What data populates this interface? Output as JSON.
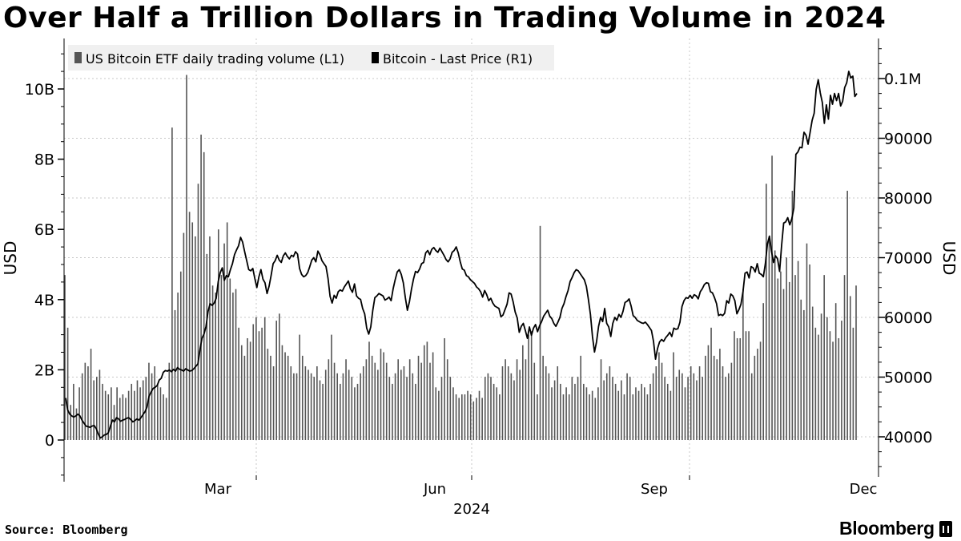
{
  "title": "Over Half a Trillion Dollars in Trading Volume in 2024",
  "source": "Source: Bloomberg",
  "logo": "Bloomberg",
  "colors": {
    "volume_bar": "#555555",
    "price_line": "#000000",
    "grid": "#c8c8c8",
    "legend_bg": "#f0f0f0"
  },
  "chart_data": {
    "type": "bar",
    "legend": [
      "US Bitcoin ETF daily trading volume (L1)",
      "Bitcoin - Last Price (R1)"
    ],
    "legend_placement": "top-left",
    "grid": true,
    "x_tick_labels": [
      "Mar",
      "Jun",
      "Sep",
      "Dec"
    ],
    "x_year_label": "2024",
    "x_range": [
      "2024-01-08",
      "2024-12-13"
    ],
    "left_axis": {
      "label": "USD",
      "tick_labels": [
        "0",
        "2B",
        "4B",
        "6B",
        "8B",
        "10B"
      ],
      "range": [
        -1000000000,
        11200000000
      ]
    },
    "right_axis": {
      "label": "USD",
      "tick_labels": [
        "40000",
        "50000",
        "60000",
        "70000",
        "80000",
        "90000",
        "0.1M"
      ],
      "range": [
        34200,
        106500
      ]
    },
    "series": [
      {
        "name": "US Bitcoin ETF daily trading volume (L1)",
        "type": "bar",
        "axis": "left",
        "values": [
          4.7,
          3.2,
          1.0,
          1.6,
          0.9,
          1.5,
          1.9,
          2.2,
          2.1,
          2.6,
          1.7,
          1.8,
          2.0,
          1.6,
          1.4,
          1.3,
          1.5,
          1.0,
          1.5,
          1.2,
          1.3,
          1.2,
          1.4,
          1.6,
          1.4,
          1.7,
          1.5,
          1.7,
          1.8,
          2.2,
          1.9,
          2.1,
          1.6,
          1.5,
          1.3,
          1.2,
          2.2,
          8.9,
          3.7,
          4.2,
          4.8,
          5.9,
          10.4,
          6.5,
          6.2,
          5.8,
          7.3,
          8.7,
          8.2,
          5.3,
          5.8,
          4.4,
          4.2,
          6.0,
          4.7,
          5.6,
          6.2,
          4.6,
          4.2,
          4.3,
          3.2,
          2.7,
          2.4,
          2.9,
          2.8,
          3.3,
          3.5,
          3.1,
          3.2,
          3.5,
          2.6,
          2.4,
          2.1,
          3.4,
          3.6,
          2.7,
          2.5,
          2.4,
          2.1,
          1.9,
          1.9,
          3.0,
          2.4,
          2.1,
          2.0,
          1.9,
          1.8,
          2.1,
          1.7,
          1.6,
          2.0,
          2.3,
          3.0,
          2.2,
          1.9,
          1.6,
          1.9,
          2.3,
          2.0,
          1.8,
          1.5,
          1.6,
          1.9,
          2.1,
          2.3,
          2.8,
          2.4,
          2.2,
          2.0,
          2.6,
          2.5,
          2.2,
          1.8,
          1.6,
          1.9,
          2.3,
          2.0,
          2.1,
          1.8,
          2.3,
          1.9,
          1.6,
          2.4,
          2.2,
          2.7,
          2.8,
          2.2,
          2.5,
          1.5,
          1.4,
          1.8,
          2.9,
          2.3,
          1.8,
          1.5,
          1.3,
          1.2,
          1.3,
          1.3,
          1.4,
          1.3,
          1.1,
          1.2,
          1.4,
          1.2,
          1.8,
          1.9,
          1.8,
          1.6,
          1.5,
          1.3,
          2.1,
          2.3,
          2.1,
          1.9,
          1.7,
          2.3,
          2.0,
          2.7,
          2.3,
          3.0,
          3.1,
          2.2,
          1.3,
          6.1,
          2.4,
          2.1,
          1.9,
          1.5,
          1.7,
          2.1,
          1.6,
          1.3,
          1.5,
          1.3,
          1.8,
          1.6,
          1.8,
          2.4,
          1.6,
          1.5,
          1.3,
          1.4,
          1.2,
          1.5,
          2.3,
          1.7,
          1.9,
          2.1,
          1.8,
          1.6,
          1.4,
          1.7,
          1.3,
          1.9,
          1.8,
          1.3,
          1.5,
          1.4,
          1.6,
          1.5,
          1.3,
          1.6,
          1.9,
          2.1,
          2.5,
          2.2,
          1.8,
          1.6,
          1.4,
          2.5,
          1.8,
          2.0,
          1.9,
          1.5,
          1.8,
          2.1,
          1.9,
          1.7,
          2.1,
          1.8,
          2.4,
          2.7,
          3.2,
          2.4,
          2.3,
          2.6,
          2.1,
          1.8,
          1.9,
          2.2,
          3.1,
          2.9,
          2.9,
          4.3,
          3.1,
          3.1,
          1.9,
          2.4,
          2.6,
          2.8,
          3.9,
          7.3,
          5.8,
          8.1,
          5.4,
          4.6,
          4.8,
          4.3,
          5.2,
          4.5,
          7.1,
          4.7,
          5.1,
          4.0,
          3.7,
          5.6,
          5.0,
          3.8,
          3.2,
          3.0,
          3.6,
          4.7,
          3.5,
          3.1,
          2.8,
          3.9,
          2.9,
          3.4,
          4.7,
          7.1,
          4.1,
          3.2,
          4.4
        ],
        "unit": "B USD"
      },
      {
        "name": "Bitcoin - Last Price (R1)",
        "type": "line",
        "axis": "right",
        "values": [
          46500,
          44500,
          43800,
          43500,
          43300,
          43500,
          43800,
          43500,
          42800,
          42300,
          41800,
          41700,
          41600,
          41800,
          41900,
          41400,
          40500,
          39800,
          40000,
          40300,
          40400,
          40700,
          41800,
          42800,
          42500,
          43200,
          43000,
          42600,
          42800,
          42900,
          43100,
          43200,
          42900,
          42500,
          42700,
          43000,
          42800,
          43200,
          43700,
          44200,
          45000,
          46800,
          47500,
          48100,
          48300,
          48600,
          49500,
          49800,
          50800,
          51100,
          51000,
          51200,
          50900,
          51300,
          51000,
          51600,
          51300,
          51200,
          51000,
          51400,
          51200,
          51000,
          51100,
          51400,
          51800,
          52200,
          54500,
          56500,
          57200,
          58500,
          61000,
          62300,
          62000,
          62400,
          63200,
          66000,
          67500,
          68300,
          66200,
          67000,
          66800,
          68000,
          69000,
          70500,
          71300,
          72000,
          73400,
          72600,
          71000,
          69500,
          68000,
          67800,
          68200,
          66500,
          65000,
          66800,
          68000,
          66400,
          65800,
          64000,
          65200,
          67000,
          69000,
          69500,
          70400,
          69600,
          69200,
          70300,
          70800,
          70200,
          69800,
          70400,
          70200,
          71000,
          70600,
          68200,
          67200,
          66800,
          67000,
          67500,
          68500,
          69600,
          70000,
          69300,
          71100,
          70500,
          69500,
          69000,
          68500,
          66500,
          63500,
          62400,
          63700,
          63200,
          64300,
          64600,
          64400,
          65100,
          65600,
          66100,
          64800,
          64200,
          65600,
          63600,
          63200,
          63000,
          61500,
          60600,
          58200,
          57200,
          58400,
          61200,
          63300,
          63600,
          64000,
          63800,
          63600,
          62900,
          63100,
          63400,
          62800,
          64800,
          66300,
          67600,
          68000,
          67200,
          65800,
          63300,
          61200,
          62600,
          64700,
          66400,
          67700,
          67500,
          68100,
          69000,
          69200,
          70800,
          71200,
          70500,
          71400,
          71700,
          71200,
          70900,
          71600,
          71000,
          70400,
          69700,
          69300,
          69800,
          70900,
          71200,
          71800,
          70800,
          69300,
          68100,
          67900,
          67000,
          66800,
          66300,
          66000,
          65700,
          65100,
          64800,
          64300,
          63400,
          64500,
          63800,
          62800,
          63200,
          62400,
          61900,
          61700,
          61500,
          60100,
          60400,
          61300,
          62200,
          64100,
          63900,
          62600,
          60900,
          59900,
          57500,
          58500,
          59000,
          57800,
          56500,
          58400,
          57000,
          58200,
          58800,
          57600,
          58600,
          59300,
          60200,
          60700,
          61200,
          60200,
          59800,
          59000,
          58500,
          59200,
          60000,
          61500,
          62300,
          63500,
          64500,
          66000,
          66700,
          67500,
          68000,
          67800,
          67300,
          66800,
          66300,
          65200,
          63000,
          60500,
          56800,
          54200,
          55900,
          58500,
          60000,
          59300,
          61500,
          59000,
          58400,
          56800,
          59000,
          60000,
          59500,
          60500,
          60000,
          61000,
          62500,
          62700,
          63100,
          61900,
          60300,
          60000,
          59500,
          59300,
          59100,
          59000,
          59200,
          58800,
          58300,
          57800,
          56000,
          53000,
          54800,
          55900,
          56300,
          56000,
          56600,
          57000,
          57500,
          56800,
          58200,
          58000,
          58100,
          59200,
          61800,
          62800,
          63300,
          63200,
          63700,
          63200,
          63800,
          63600,
          63100,
          64300,
          64800,
          65500,
          65800,
          65700,
          64300,
          64100,
          63300,
          62300,
          60300,
          60500,
          60300,
          60700,
          62800,
          62400,
          63900,
          63600,
          62800,
          60600,
          61300,
          62200,
          64300,
          67400,
          67600,
          66600,
          68500,
          68300,
          67600,
          69000,
          67400,
          67200,
          66800,
          69000,
          72300,
          73600,
          71100,
          69200,
          70300,
          69800,
          67700,
          72100,
          75800,
          76000,
          76700,
          75500,
          76500,
          78300,
          87300,
          87700,
          88500,
          88400,
          91000,
          90500,
          89000,
          91000,
          93000,
          94200,
          98200,
          99800,
          97600,
          96000,
          92500,
          95600,
          93200,
          97200,
          95700,
          97500,
          96300,
          97500,
          95400,
          96200,
          98500,
          99300,
          101200,
          100100,
          100400,
          97000,
          97500
        ]
      }
    ]
  }
}
